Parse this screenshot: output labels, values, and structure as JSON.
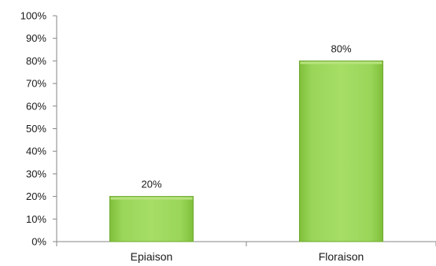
{
  "chart_data": {
    "type": "bar",
    "title": "",
    "xlabel": "",
    "ylabel": "",
    "categories": [
      "Epiaison",
      "Floraison"
    ],
    "values": [
      20,
      80
    ],
    "data_labels": [
      "20%",
      "80%"
    ],
    "ylim": [
      0,
      100
    ],
    "y_ticks": [
      0,
      10,
      20,
      30,
      40,
      50,
      60,
      70,
      80,
      90,
      100
    ],
    "y_tick_labels": [
      "0%",
      "10%",
      "20%",
      "30%",
      "40%",
      "50%",
      "60%",
      "70%",
      "80%",
      "90%",
      "100%"
    ],
    "grid": false,
    "legend": "none",
    "colors": {
      "bar": "#92d050",
      "bar_edge": "#6ea82f",
      "bar_highlight": "#b7e27e",
      "axis": "#868686"
    }
  }
}
